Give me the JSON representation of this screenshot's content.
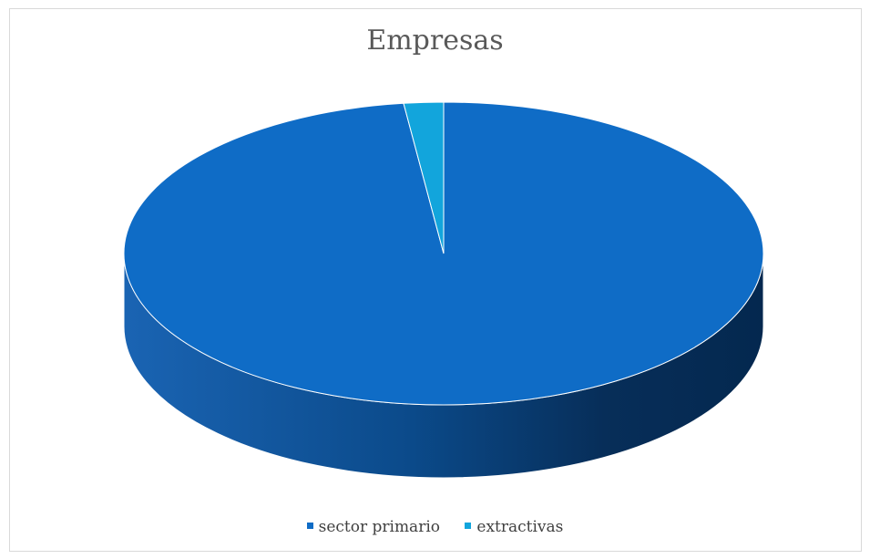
{
  "chart_data": {
    "type": "pie",
    "title": "Empresas",
    "categories": [
      "sector primario",
      "extractivas"
    ],
    "values": [
      98,
      2
    ],
    "colors": [
      "#0f6cc6",
      "#12a5dc"
    ],
    "legend_position": "bottom",
    "style": "3d"
  }
}
